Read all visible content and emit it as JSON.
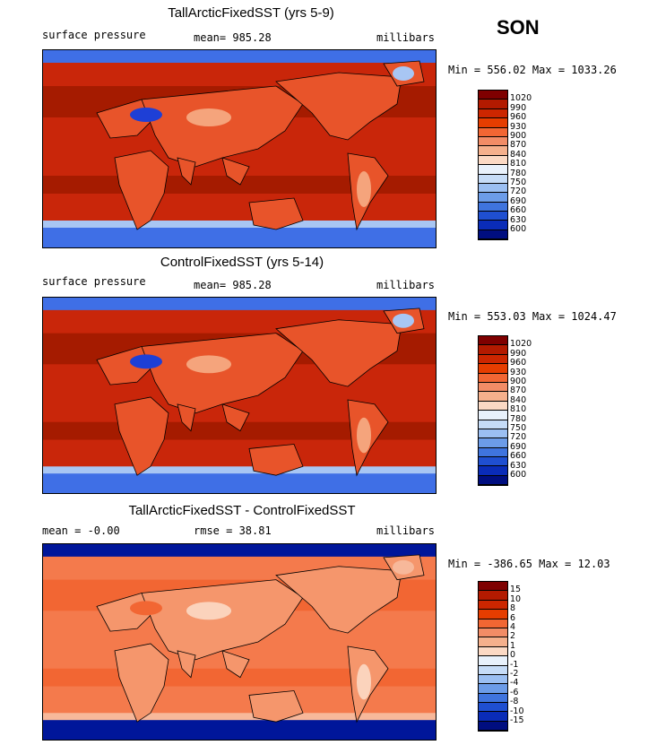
{
  "season": "SON",
  "panels": [
    {
      "title": "TallArcticFixedSST (yrs 5-9)",
      "left": "surface pressure",
      "center": "mean= 985.28",
      "right": "millibars",
      "minmax": "Min = 556.02 Max = 1033.26",
      "colorbar": {
        "labels": [
          "1020",
          "990",
          "960",
          "930",
          "900",
          "870",
          "840",
          "810",
          "780",
          "750",
          "720",
          "690",
          "660",
          "630",
          "600"
        ],
        "colors": [
          "#7f0000",
          "#b31a00",
          "#cc2600",
          "#e63d00",
          "#f26633",
          "#f28c66",
          "#f5b08c",
          "#fbd9c4",
          "#e8f1fb",
          "#c6dcf7",
          "#9bbff2",
          "#6c9ce8",
          "#3f74de",
          "#1f4fd1",
          "#0a2cb8",
          "#000e80"
        ]
      },
      "map_colors": {
        "base": "#c9260a",
        "ocean_band": "#a51b00",
        "land": "#e8542a",
        "highland": "#f5a47c",
        "plateau": "#1e3fd6",
        "polar": "#3f6fe6",
        "polar_light": "#a8c6f3"
      }
    },
    {
      "title": "ControlFixedSST (yrs 5-14)",
      "left": "surface pressure",
      "center": "mean= 985.28",
      "right": "millibars",
      "minmax": "Min = 553.03 Max = 1024.47",
      "colorbar": {
        "labels": [
          "1020",
          "990",
          "960",
          "930",
          "900",
          "870",
          "840",
          "810",
          "780",
          "750",
          "720",
          "690",
          "660",
          "630",
          "600"
        ],
        "colors": [
          "#7f0000",
          "#b31a00",
          "#cc2600",
          "#e63d00",
          "#f26633",
          "#f28c66",
          "#f5b08c",
          "#fbd9c4",
          "#e8f1fb",
          "#c6dcf7",
          "#9bbff2",
          "#6c9ce8",
          "#3f74de",
          "#1f4fd1",
          "#0a2cb8",
          "#000e80"
        ]
      },
      "map_colors": {
        "base": "#c9260a",
        "ocean_band": "#a51b00",
        "land": "#e8542a",
        "highland": "#f5a47c",
        "plateau": "#1e3fd6",
        "polar": "#3f6fe6",
        "polar_light": "#a8c6f3"
      }
    },
    {
      "title": "TallArcticFixedSST - ControlFixedSST",
      "left": "mean =   -0.00",
      "center": "rmse =  38.81",
      "right": "millibars",
      "minmax": "Min = -386.65 Max =  12.03",
      "colorbar": {
        "labels": [
          "15",
          "10",
          "8",
          "6",
          "4",
          "2",
          "1",
          "0",
          "-1",
          "-2",
          "-4",
          "-6",
          "-8",
          "-10",
          "-15"
        ],
        "colors": [
          "#7f0000",
          "#b31a00",
          "#cc2600",
          "#e63d00",
          "#f26633",
          "#f28c66",
          "#f5b08c",
          "#fbd9c4",
          "#e8f1fb",
          "#c6dcf7",
          "#9bbff2",
          "#6c9ce8",
          "#3f74de",
          "#1f4fd1",
          "#0a2cb8",
          "#000e80"
        ]
      },
      "map_colors": {
        "base": "#f47a4c",
        "ocean_band": "#f26633",
        "land": "#f5966c",
        "highland": "#fbd3bc",
        "plateau": "#f26633",
        "polar": "#00169a",
        "polar_light": "#f7b89a"
      }
    }
  ]
}
